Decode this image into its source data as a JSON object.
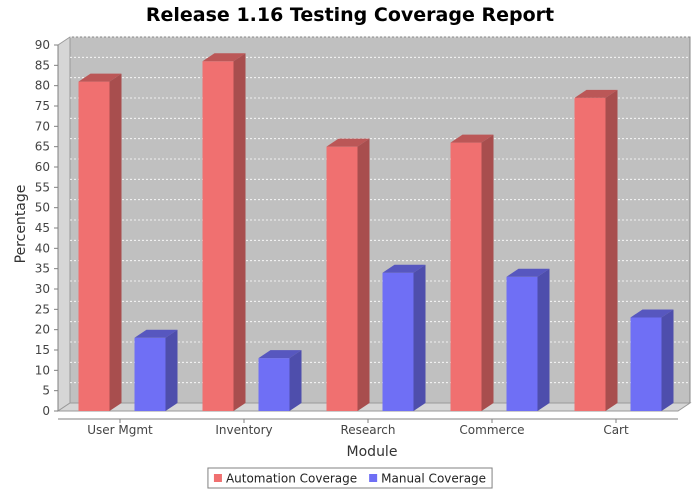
{
  "chart_data": {
    "type": "bar",
    "title": "Release 1.16 Testing Coverage Report",
    "xlabel": "Module",
    "ylabel": "Percentage",
    "categories": [
      "User Mgmt",
      "Inventory",
      "Research",
      "Commerce",
      "Cart"
    ],
    "series": [
      {
        "name": "Automation Coverage",
        "color": "#f07070",
        "values": [
          81,
          86,
          65,
          66,
          77
        ]
      },
      {
        "name": "Manual Coverage",
        "color": "#6f6ff5",
        "values": [
          18,
          13,
          34,
          33,
          23
        ]
      }
    ],
    "ylim": [
      0,
      90
    ],
    "yticks": [
      0,
      5,
      10,
      15,
      20,
      25,
      30,
      35,
      40,
      45,
      50,
      55,
      60,
      65,
      70,
      75,
      80,
      85,
      90
    ],
    "grid": true,
    "legend_position": "bottom",
    "render": "3d-bar"
  }
}
